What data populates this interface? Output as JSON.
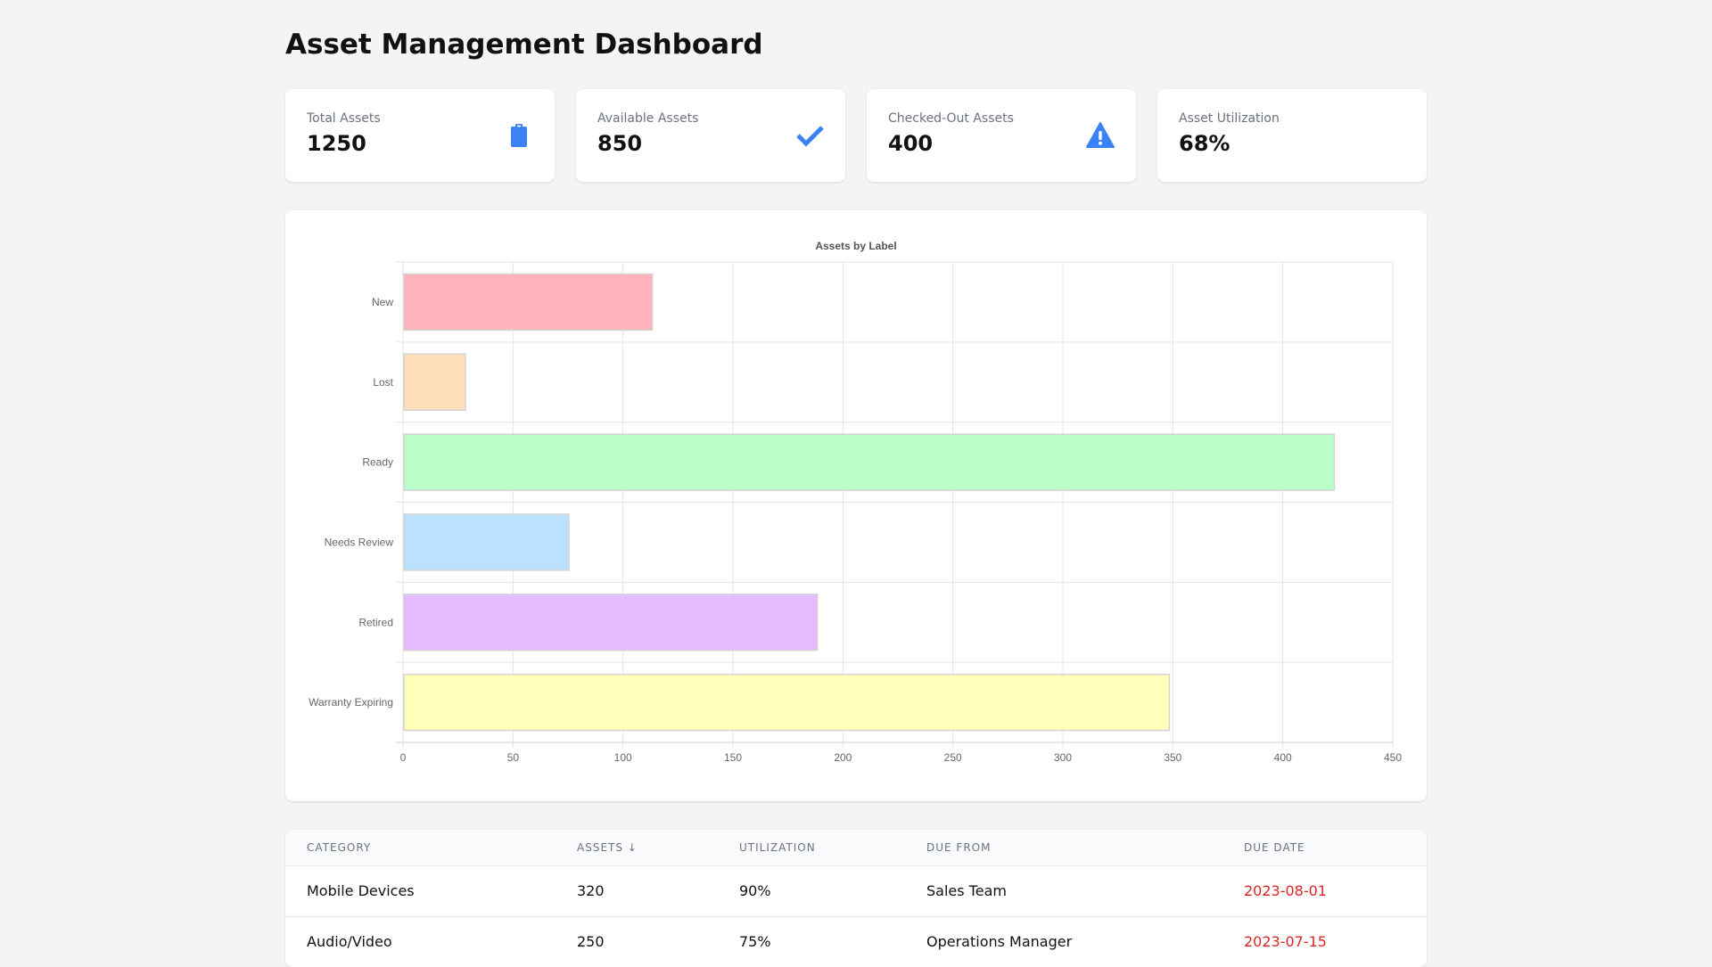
{
  "page": {
    "title": "Asset Management Dashboard"
  },
  "cards": [
    {
      "label": "Total Assets",
      "value": "1250",
      "icon": "clipboard-icon"
    },
    {
      "label": "Available Assets",
      "value": "850",
      "icon": "check-icon"
    },
    {
      "label": "Checked-Out Assets",
      "value": "400",
      "icon": "warning-icon"
    },
    {
      "label": "Asset Utilization",
      "value": "68%",
      "icon": ""
    }
  ],
  "colors": {
    "accent": "#3b82f6",
    "due_date": "#dc2626"
  },
  "chart_data": {
    "type": "bar",
    "orientation": "horizontal",
    "title": "Assets by Label",
    "categories": [
      "New",
      "Lost",
      "Ready",
      "Needs Review",
      "Retired",
      "Warranty Expiring"
    ],
    "values": [
      113,
      28,
      423,
      75,
      188,
      348
    ],
    "colors": [
      "#ffb3ba",
      "#ffdfba",
      "#baffc9",
      "#bae1ff",
      "#e5baff",
      "#ffffba"
    ],
    "xlim": [
      0,
      450
    ],
    "xticks": [
      0,
      50,
      100,
      150,
      200,
      250,
      300,
      350,
      400,
      450
    ],
    "grid": true,
    "legend": "none"
  },
  "table": {
    "columns": [
      "Category",
      "Assets ↓",
      "Utilization",
      "Due From",
      "Due Date"
    ],
    "rows": [
      [
        "Mobile Devices",
        "320",
        "90%",
        "Sales Team",
        "2023-08-01"
      ],
      [
        "Audio/Video",
        "250",
        "75%",
        "Operations Manager",
        "2023-07-15"
      ]
    ]
  }
}
